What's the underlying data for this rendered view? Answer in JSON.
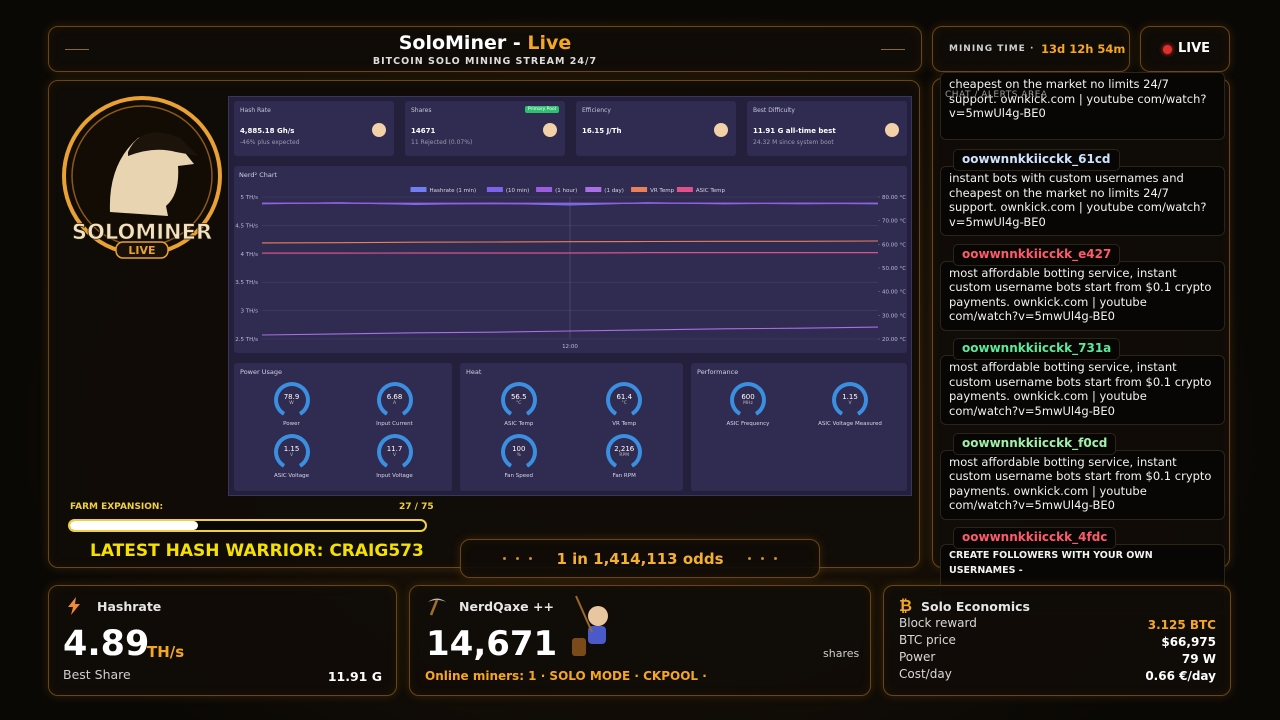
{
  "header": {
    "title": "SoloMiner -",
    "title_accent": "Live",
    "subtitle": "BITCOIN SOLO MINING STREAM 24/7"
  },
  "mining_time": {
    "label": "MINING TIME ·",
    "value": "13d 12h 54m"
  },
  "live_badge": "LIVE",
  "logo": {
    "name": "SOLOMINER",
    "tag": "LIVE"
  },
  "dashboard": {
    "cards": [
      {
        "title": "Hash Rate",
        "value": "4,885.18 Gh/s",
        "note": "-46% plus expected"
      },
      {
        "title": "Shares",
        "badge": "Primary Pool",
        "value": "14671",
        "note": "11 Rejected (0.07%)"
      },
      {
        "title": "Efficiency",
        "value": "16.15 J/Th"
      },
      {
        "title": "Best Difficulty",
        "value": "11.91 G all-time best",
        "note": "24.32 M since system boot"
      }
    ],
    "nerd_chart": {
      "type": "line",
      "title": "Nerd² Chart",
      "categories": [
        null,
        null,
        null,
        null,
        "12:00",
        null,
        null,
        null,
        null
      ],
      "ylim": [
        2.5,
        5
      ],
      "yticks": [
        {
          "value": 2.5,
          "label": "2.5 TH/s"
        },
        {
          "value": 3,
          "label": "3 TH/s"
        },
        {
          "value": 3.5,
          "label": "3.5 TH/s"
        },
        {
          "value": 4,
          "label": "4 TH/s"
        },
        {
          "value": 4.5,
          "label": "4.5 TH/s"
        },
        {
          "value": 5,
          "label": "5 TH/s"
        }
      ],
      "y2lim": [
        20,
        80
      ],
      "y2ticks": [
        {
          "value": 20,
          "label": "20.00 °C"
        },
        {
          "value": 30,
          "label": "30.00 °C"
        },
        {
          "value": 40,
          "label": "40.00 °C"
        },
        {
          "value": 50,
          "label": "50.00 °C"
        },
        {
          "value": 60,
          "label": "60.00 °C"
        },
        {
          "value": 70,
          "label": "70.00 °C"
        },
        {
          "value": 80,
          "label": "80.00 °C"
        }
      ],
      "grid": true,
      "series": [
        {
          "name": "Hashrate (1 min)",
          "color": "#6f7ff2",
          "values": [
            4.88,
            4.9,
            4.87,
            4.89,
            4.86,
            4.9,
            4.88,
            4.89,
            4.88
          ]
        },
        {
          "name": "(10 min)",
          "color": "#7d62ea",
          "values": [
            4.89,
            4.89,
            4.88,
            4.88,
            4.88,
            4.89,
            4.89,
            4.88,
            4.89
          ]
        },
        {
          "name": "(1 hour)",
          "color": "#9b5ce0",
          "values": [
            4.89,
            4.89,
            4.89,
            4.89,
            4.89,
            4.89,
            4.89,
            4.89,
            4.89
          ]
        },
        {
          "name": "(1 day)",
          "color": "#a86fe6",
          "values": [
            2.57,
            2.59,
            2.61,
            2.62,
            2.64,
            2.66,
            2.68,
            2.69,
            2.71
          ]
        },
        {
          "name": "VR Temp",
          "color": "#e9805a",
          "axis": "y2",
          "values": [
            60.6,
            60.7,
            60.9,
            61,
            61.1,
            61.2,
            61.3,
            61.3,
            61.4
          ]
        },
        {
          "name": "ASIC Temp",
          "color": "#e0508a",
          "axis": "y2",
          "values": [
            56.3,
            56.3,
            56.4,
            56.4,
            56.4,
            56.5,
            56.5,
            56.5,
            56.5
          ]
        }
      ]
    },
    "groups": [
      {
        "title": "Power Usage",
        "gauges": [
          {
            "value": "78.9",
            "unit": "W",
            "label": "Power"
          },
          {
            "value": "6.68",
            "unit": "A",
            "label": "Input Current"
          },
          {
            "value": "1.15",
            "unit": "V",
            "label": "ASIC Voltage"
          },
          {
            "value": "11.7",
            "unit": "V",
            "label": "Input Voltage"
          }
        ]
      },
      {
        "title": "Heat",
        "gauges": [
          {
            "value": "56.5",
            "unit": "°C",
            "label": "ASIC Temp"
          },
          {
            "value": "61.4",
            "unit": "°C",
            "label": "VR Temp"
          },
          {
            "value": "100",
            "unit": "%",
            "label": "Fan Speed"
          },
          {
            "value": "2,216",
            "unit": "RPM",
            "label": "Fan RPM"
          }
        ]
      },
      {
        "title": "Performance",
        "gauges": [
          {
            "value": "600",
            "unit": "MHz",
            "label": "ASIC Frequency"
          },
          {
            "value": "1.15",
            "unit": "V",
            "label": "ASIC Voltage Measured"
          }
        ]
      }
    ]
  },
  "farm": {
    "label": "FARM EXPANSION:",
    "current": 27,
    "total": 75
  },
  "warrior": "LATEST HASH WARRIOR: CRAIG573",
  "odds": "1 in 1,414,113 odds",
  "chat": {
    "title": "CHAT / ALERTS AREA",
    "messages": [
      {
        "text": "cheapest on the market no limits 24/7 support. ownkick.com | youtube com/watch?v=5mwUl4g-BE0"
      },
      {
        "user": "oowwnnkkiicckk_61cd",
        "text": "instant bots with custom usernames and cheapest on the market no limits 24/7 support. ownkick.com | youtube com/watch?v=5mwUl4g-BE0"
      },
      {
        "user": "oowwnnkkiicckk_e427",
        "text": "most affordable botting service, instant custom username bots start from $0.1 crypto payments. ownkick.com | youtube com/watch?v=5mwUl4g-BE0"
      },
      {
        "user": "oowwnnkkiicckk_731a",
        "text": "most affordable botting service, instant custom username bots start from $0.1 crypto payments. ownkick.com | youtube com/watch?v=5mwUl4g-BE0"
      },
      {
        "user": "oowwnnkkiicckk_f0cd",
        "text": "most affordable botting service, instant custom username bots start from $0.1 crypto payments. ownkick.com | youtube com/watch?v=5mwUl4g-BE0"
      },
      {
        "user": "oowwnnkkiicckk_4fdc",
        "text": "CREATE FOLLOWERS WITH YOUR OWN USERNAMES -"
      }
    ]
  },
  "bottom": {
    "hashrate": {
      "title": "Hashrate",
      "value": "4.89",
      "unit": "TH/s",
      "best_label": "Best Share",
      "best_value": "11.91 G"
    },
    "miner": {
      "title": "NerdQaxe ++",
      "value": "14,671",
      "unit": "shares",
      "status": "Online miners: 1 · SOLO MODE · CKPOOL ·"
    },
    "economics": {
      "title": "Solo Economics",
      "rows": [
        [
          "Block reward",
          "3.125 BTC"
        ],
        [
          "BTC price",
          "$66,975"
        ],
        [
          "Power",
          "79 W"
        ],
        [
          "Cost/day",
          "0.66 €/day"
        ]
      ]
    }
  }
}
